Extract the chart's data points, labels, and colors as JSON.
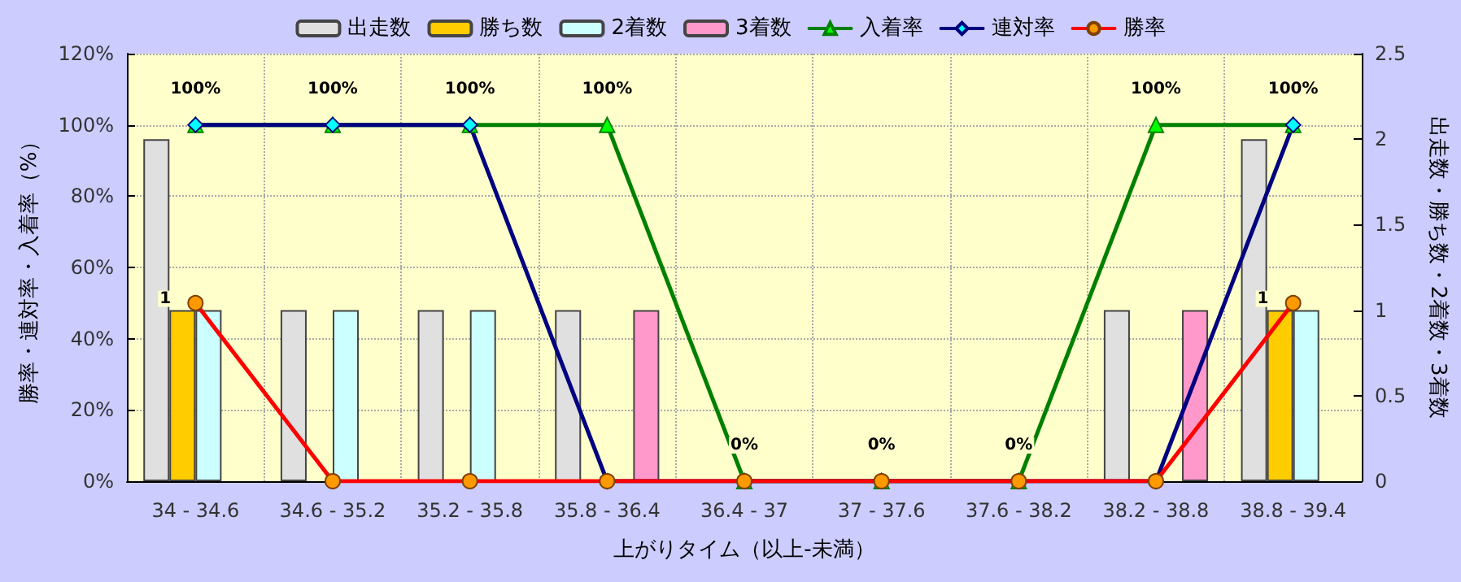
{
  "chart_data": {
    "type": "bar",
    "xlabel": "上がりタイム（以上-未満）",
    "ylabel": "勝率・連対率・入着率（%）",
    "y2label": "出走数・勝ち数・2着数・3着数",
    "categories": [
      "34 - 34.6",
      "34.6 - 35.2",
      "35.2 - 35.8",
      "35.8 - 36.4",
      "36.4 - 37",
      "37 - 37.6",
      "37.6 - 38.2",
      "38.2 - 38.8",
      "38.8 - 39.4"
    ],
    "series": [
      {
        "name": "出走数",
        "axis": "y2",
        "color": "#e0e0e0",
        "values": [
          2,
          1,
          1,
          1,
          0,
          0,
          0,
          1,
          2
        ]
      },
      {
        "name": "勝ち数",
        "axis": "y2",
        "color": "#ffcc00",
        "values": [
          1,
          0,
          0,
          0,
          0,
          0,
          0,
          0,
          1
        ],
        "value_labels": [
          "1",
          null,
          null,
          null,
          null,
          null,
          null,
          null,
          "1"
        ]
      },
      {
        "name": "2着数",
        "axis": "y2",
        "color": "#ccffff",
        "values": [
          1,
          1,
          1,
          0,
          0,
          0,
          0,
          0,
          1
        ]
      },
      {
        "name": "3着数",
        "axis": "y2",
        "color": "#ff99cc",
        "values": [
          0,
          0,
          0,
          1,
          0,
          0,
          0,
          1,
          0
        ]
      },
      {
        "name": "入着率",
        "type": "line",
        "marker": "triangle",
        "color": "#008000",
        "values": [
          100,
          100,
          100,
          100,
          0,
          0,
          0,
          100,
          100
        ],
        "value_labels": [
          "100%",
          "100%",
          "100%",
          "100%",
          "0%",
          "0%",
          "0%",
          "100%",
          "100%"
        ]
      },
      {
        "name": "連対率",
        "type": "line",
        "marker": "diamond",
        "color": "#000080",
        "values": [
          100,
          100,
          100,
          0,
          0,
          0,
          0,
          0,
          100
        ]
      },
      {
        "name": "勝率",
        "type": "line",
        "marker": "circle",
        "color": "#ff0000",
        "values": [
          50,
          0,
          0,
          0,
          0,
          0,
          0,
          0,
          50
        ]
      }
    ],
    "ylim": [
      0,
      120
    ],
    "yticks": [
      {
        "value": 0,
        "label": "0%"
      },
      {
        "value": 20,
        "label": "20%"
      },
      {
        "value": 40,
        "label": "40%"
      },
      {
        "value": 60,
        "label": "60%"
      },
      {
        "value": 80,
        "label": "80%"
      },
      {
        "value": 100,
        "label": "100%"
      },
      {
        "value": 120,
        "label": "120%"
      }
    ],
    "y2lim": [
      0,
      2.5
    ],
    "y2ticks": [
      0,
      0.5,
      1,
      1.5,
      2,
      2.5
    ],
    "grid": true,
    "legend": "top",
    "line_style": "solid"
  }
}
